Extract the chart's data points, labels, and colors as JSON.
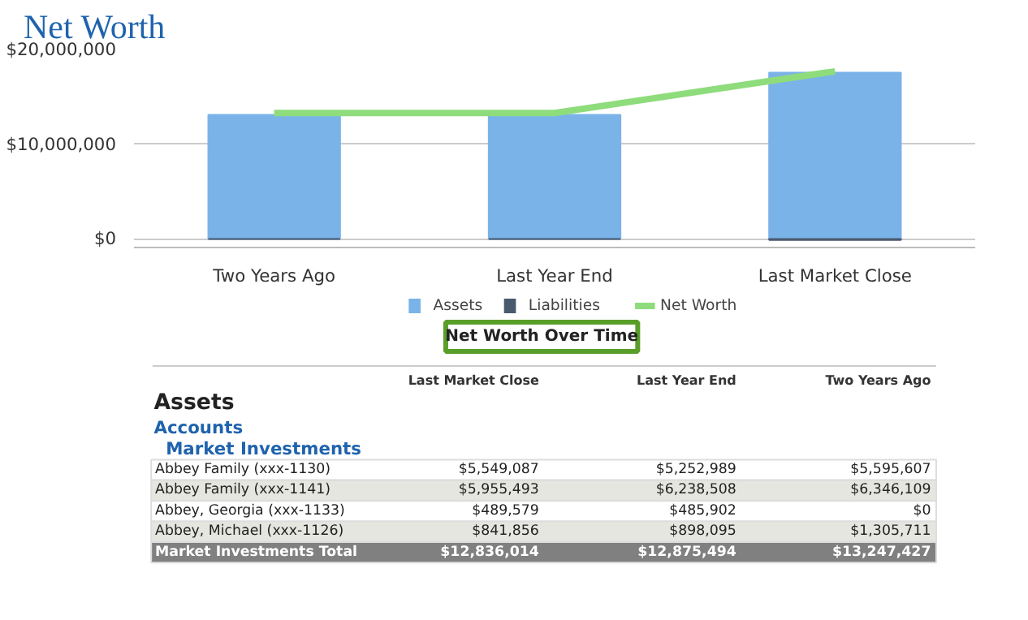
{
  "chart_data": {
    "type": "bar",
    "title": "Net Worth",
    "subtitle": "Net Worth Over Time",
    "categories": [
      "Two Years Ago",
      "Last Year End",
      "Last Market Close"
    ],
    "series": [
      {
        "name": "Assets",
        "color": "#7ab3e8",
        "values": [
          13100000,
          13100000,
          17550000
        ]
      },
      {
        "name": "Liabilities",
        "color": "#4a5a6e",
        "values": [
          0,
          0,
          -100000
        ]
      },
      {
        "name": "Net Worth",
        "type": "line",
        "color": "#8edc7c",
        "values": [
          13300000,
          13300000,
          17700000
        ]
      }
    ],
    "ylim": [
      -900000,
      20000000
    ],
    "yticks": [
      {
        "value": 0,
        "label": "$0"
      },
      {
        "value": 10000000,
        "label": "$10,000,000"
      },
      {
        "value": 20000000,
        "label": "$20,000,000"
      }
    ],
    "grid": "y",
    "legend": "bottom",
    "annotations": [
      "Last Market Close",
      "Last Year End",
      "Two Years Ago",
      "Assets",
      "Accounts",
      "Market Investments",
      "Abbey Family (xxx-1130)",
      "$5,549,087",
      "$5,252,989",
      "$5,595,607",
      "Abbey Family (xxx-1141)",
      "$5,955,493",
      "$6,238,508",
      "$6,346,109",
      "Abbey, Georgia (xxx-1133)",
      "$489,579",
      "$485,902",
      "$0",
      "Abbey, Michael (xxx-1126)",
      "$841,856",
      "$898,095",
      "$1,305,711",
      "Market Investments Total",
      "$12,836,014",
      "$12,875,494",
      "$13,247,427"
    ]
  }
}
